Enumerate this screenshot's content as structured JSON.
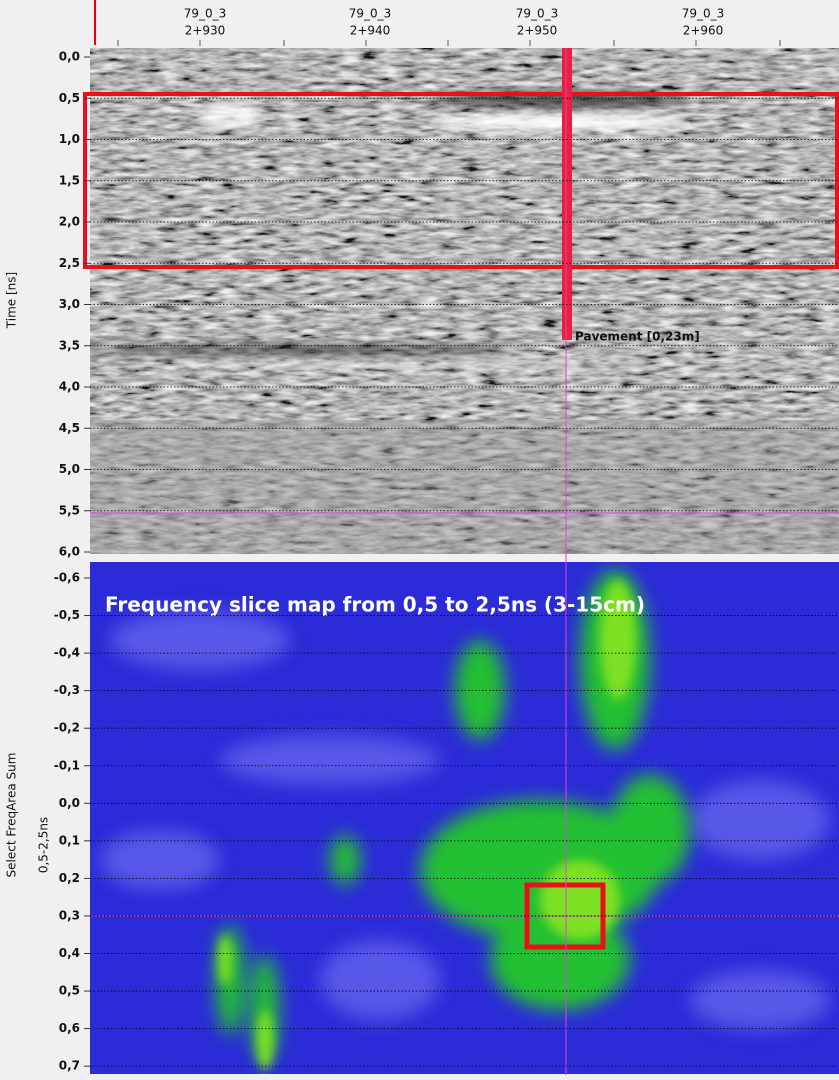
{
  "header": {
    "stations": [
      {
        "line": "79_0_3",
        "chainage": "2+930"
      },
      {
        "line": "79_0_3",
        "chainage": "2+940"
      },
      {
        "line": "79_0_3",
        "chainage": "2+950"
      },
      {
        "line": "79_0_3",
        "chainage": "2+960"
      }
    ]
  },
  "radargram": {
    "axis_label": "Time [ns]",
    "ticks": [
      "0,0",
      "0,5",
      "1,0",
      "1,5",
      "2,0",
      "2,5",
      "3,0",
      "3,5",
      "4,0",
      "4,5",
      "5,0",
      "5,5",
      "6,0"
    ],
    "annotation": "Pavement [0,23m]"
  },
  "slice_map": {
    "axis_label": "Select FreqArea Sum",
    "sub_label": "0,5-2,5ns",
    "title": "Frequency slice map from 0,5 to 2,5ns (3-15cm)",
    "ticks": [
      "-0,6",
      "-0,5",
      "-0,4",
      "-0,3",
      "-0,2",
      "-0,1",
      "0,0",
      "0,1",
      "0,2",
      "0,3",
      "0,4",
      "0,5",
      "0,6",
      "0,7"
    ]
  }
}
